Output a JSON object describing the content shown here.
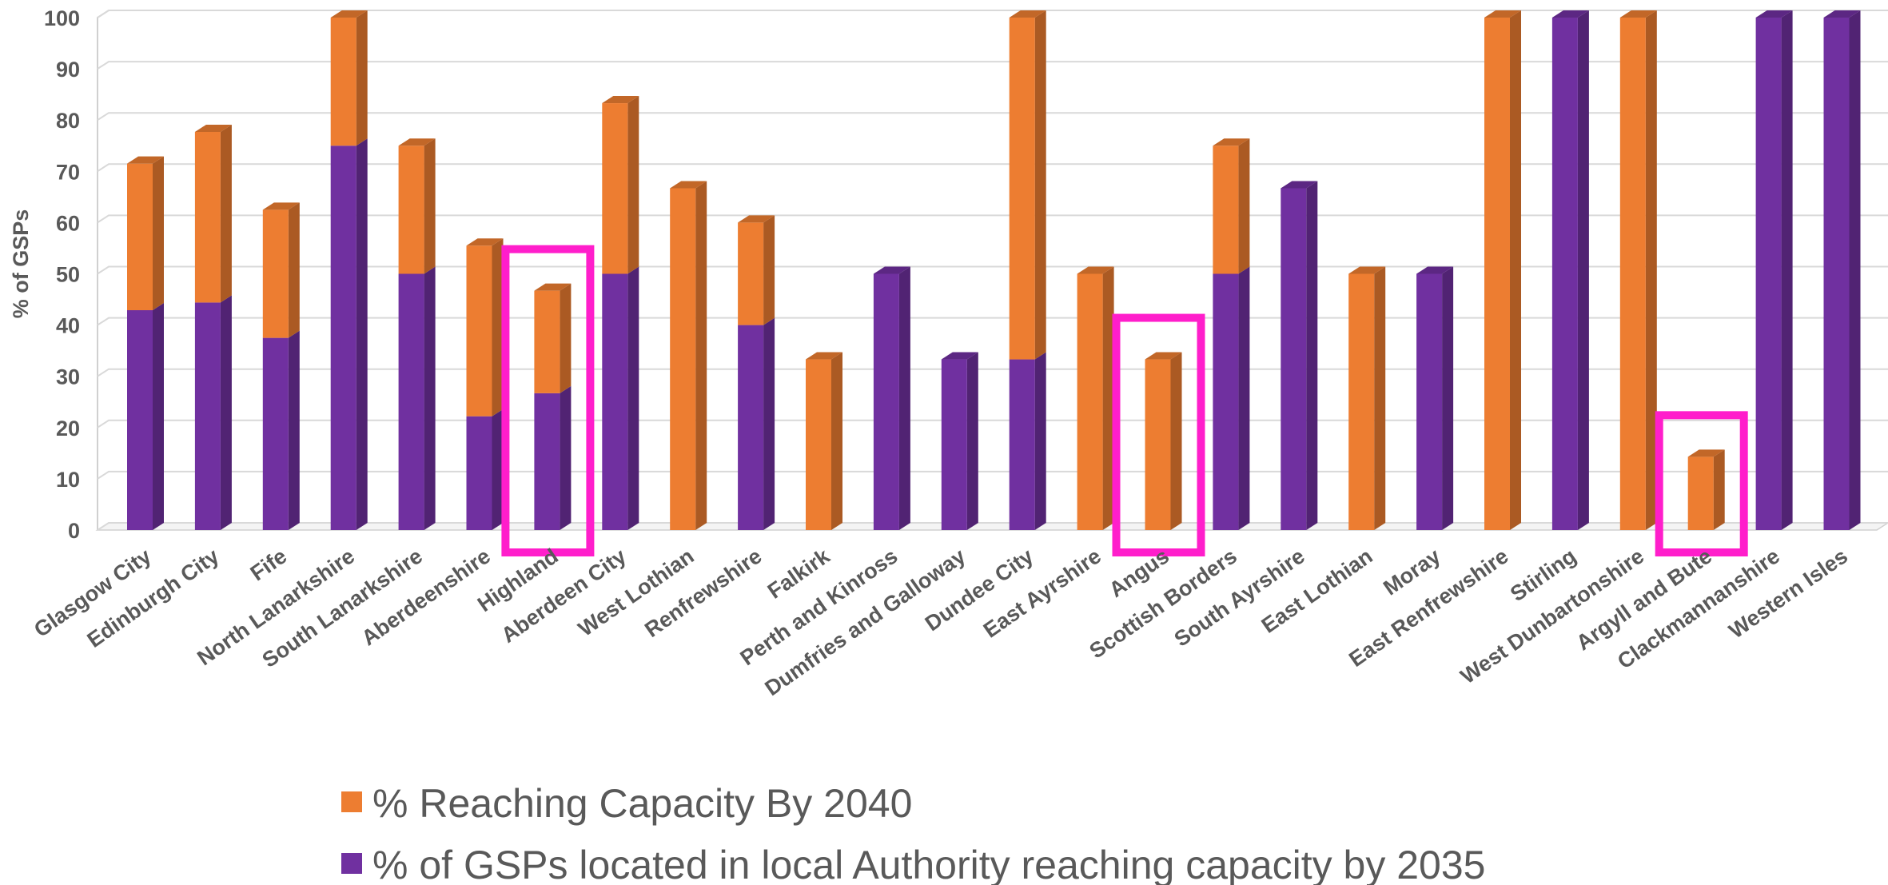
{
  "chart_data": {
    "type": "bar",
    "stacked": true,
    "three_d": true,
    "ylabel": "% of GSPs",
    "ylim": [
      0,
      100
    ],
    "yticks": [
      0,
      10,
      20,
      30,
      40,
      50,
      60,
      70,
      80,
      90,
      100
    ],
    "grid": true,
    "legend_position": "bottom",
    "categories": [
      "Glasgow City",
      "Edinburgh City",
      "Fife",
      "North Lanarkshire",
      "South Lanarkshire",
      "Aberdeenshire",
      "Highland",
      "Aberdeen City",
      "West Lothian",
      "Renfrewshire",
      "Falkirk",
      "Perth and Kinross",
      "Dumfries and Galloway",
      "Dundee City",
      "East Ayrshire",
      "Angus",
      "Scottish Borders",
      "South Ayrshire",
      "East Lothian",
      "Moray",
      "East Renfrewshire",
      "Stirling",
      "West Dunbartonshire",
      "Argyll and Bute",
      "Clackmannanshire",
      "Western Isles"
    ],
    "series": [
      {
        "name": "% of GSPs located in local Authority reaching capacity by 2035",
        "color": "#7030a0",
        "values": [
          42.9,
          44.4,
          37.5,
          75,
          50,
          22.2,
          26.7,
          50,
          0,
          40,
          0,
          50,
          33.3,
          33.3,
          0,
          0,
          50,
          66.7,
          0,
          50,
          0,
          100,
          0,
          0,
          100,
          100
        ]
      },
      {
        "name": "% Reaching Capacity By 2040",
        "color": "#ed7d31",
        "values": [
          28.6,
          33.3,
          25,
          25,
          25,
          33.3,
          20,
          33.3,
          66.7,
          20,
          33.3,
          0,
          0,
          66.7,
          50,
          33.3,
          25,
          0,
          50,
          0,
          100,
          0,
          100,
          14.3,
          0,
          0
        ]
      }
    ],
    "highlighted_categories": [
      "Highland",
      "Angus",
      "Argyll and Bute"
    ],
    "highlight_color": "#ff1ecb"
  },
  "legend": {
    "items": [
      {
        "label": "% Reaching Capacity By 2040",
        "color": "#ed7d31"
      },
      {
        "label": "% of GSPs located in local Authority reaching capacity by 2035",
        "color": "#7030a0"
      }
    ]
  }
}
